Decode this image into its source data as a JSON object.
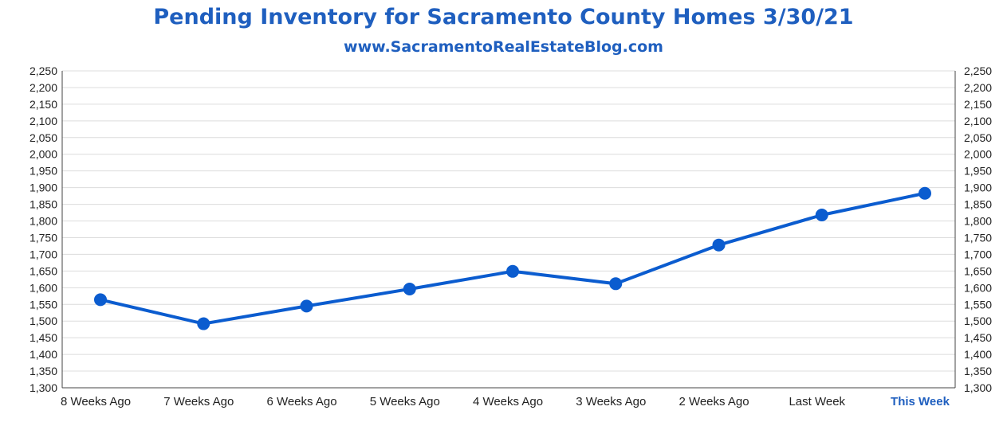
{
  "header": {
    "title": "Pending Inventory for Sacramento County Homes 3/30/21",
    "subtitle": "www.SacramentoRealEstateBlog.com"
  },
  "colors": {
    "accent": "#1f5fbf",
    "line": "#0b5ccf",
    "grid": "#dcdcdc"
  },
  "chart_data": {
    "type": "line",
    "title": "Pending Inventory for Sacramento County Homes 3/30/21",
    "subtitle": "www.SacramentoRealEstateBlog.com",
    "categories": [
      "8 Weeks Ago",
      "7 Weeks Ago",
      "6 Weeks Ago",
      "5 Weeks Ago",
      "4 Weeks Ago",
      "3 Weeks Ago",
      "2 Weeks Ago",
      "Last Week",
      "This Week"
    ],
    "highlight_category": "This Week",
    "series": [
      {
        "values": [
          1564,
          1492,
          1545,
          1596,
          1649,
          1612,
          1728,
          1818,
          1883
        ]
      }
    ],
    "ylim": [
      1300,
      2250
    ],
    "yticks": [
      1300,
      1350,
      1400,
      1450,
      1500,
      1550,
      1600,
      1650,
      1700,
      1750,
      1800,
      1850,
      1900,
      1950,
      2000,
      2050,
      2100,
      2150,
      2200,
      2250
    ],
    "grid": true,
    "y_axis_both_sides": true,
    "legend": "none"
  }
}
